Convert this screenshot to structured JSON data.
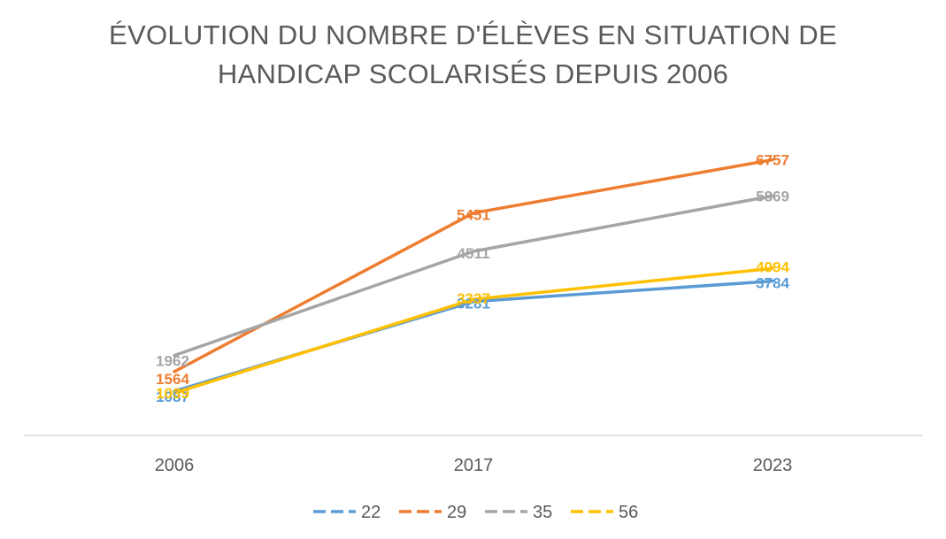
{
  "chart_data": {
    "type": "line",
    "title_lines": [
      "ÉVOLUTION DU NOMBRE D'ÉLÈVES EN SITUATION DE",
      "HANDICAP SCOLARISÉS DEPUIS 2006"
    ],
    "categories": [
      "2006",
      "2017",
      "2023"
    ],
    "series": [
      {
        "name": "22",
        "color": "#5b9bd5",
        "values": [
          1087,
          3281,
          3784
        ]
      },
      {
        "name": "29",
        "color": "#ed7d31",
        "values": [
          1564,
          5451,
          6757
        ]
      },
      {
        "name": "35",
        "color": "#a5a5a5",
        "values": [
          1962,
          4511,
          5869
        ]
      },
      {
        "name": "56",
        "color": "#ffc000",
        "values": [
          1039,
          3337,
          4094
        ]
      }
    ],
    "ylim": [
      0,
      8000
    ],
    "grid": false,
    "legend_position": "bottom",
    "data_labels": true
  }
}
